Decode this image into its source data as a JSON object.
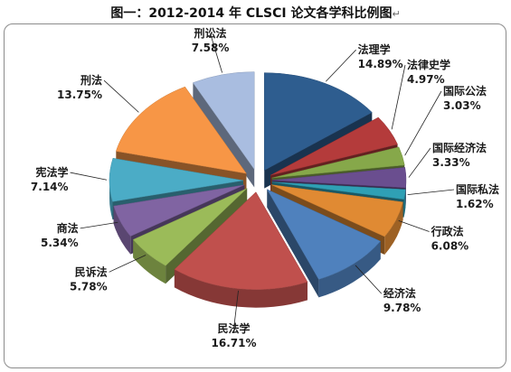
{
  "chart_data": {
    "type": "pie",
    "title": "图一：2012-2014 年 CLSCI 论文各学科比例图",
    "categories": [
      "法理学",
      "法律史学",
      "国际公法",
      "国际经济法",
      "国际私法",
      "行政法",
      "经济法",
      "民法学",
      "民诉法",
      "商法",
      "宪法学",
      "刑法",
      "刑讼法"
    ],
    "values": [
      14.89,
      4.97,
      3.03,
      3.33,
      1.62,
      6.08,
      9.78,
      16.71,
      5.78,
      5.34,
      7.14,
      13.75,
      7.58
    ],
    "value_labels": [
      "14.89%",
      "4.97%",
      "3.03%",
      "3.33%",
      "1.62%",
      "6.08%",
      "9.78%",
      "16.71%",
      "5.78%",
      "5.34%",
      "7.14%",
      "13.75%",
      "7.58%"
    ],
    "colors": [
      "#2e5d8f",
      "#b43b3b",
      "#86a84a",
      "#6a4e8f",
      "#2fa0b5",
      "#e08a33",
      "#4f81bd",
      "#c0504d",
      "#9bbb59",
      "#8064a2",
      "#4bacc6",
      "#f79646",
      "#a9bde0"
    ],
    "exploded": "all",
    "style": "3d",
    "legend": "none"
  }
}
